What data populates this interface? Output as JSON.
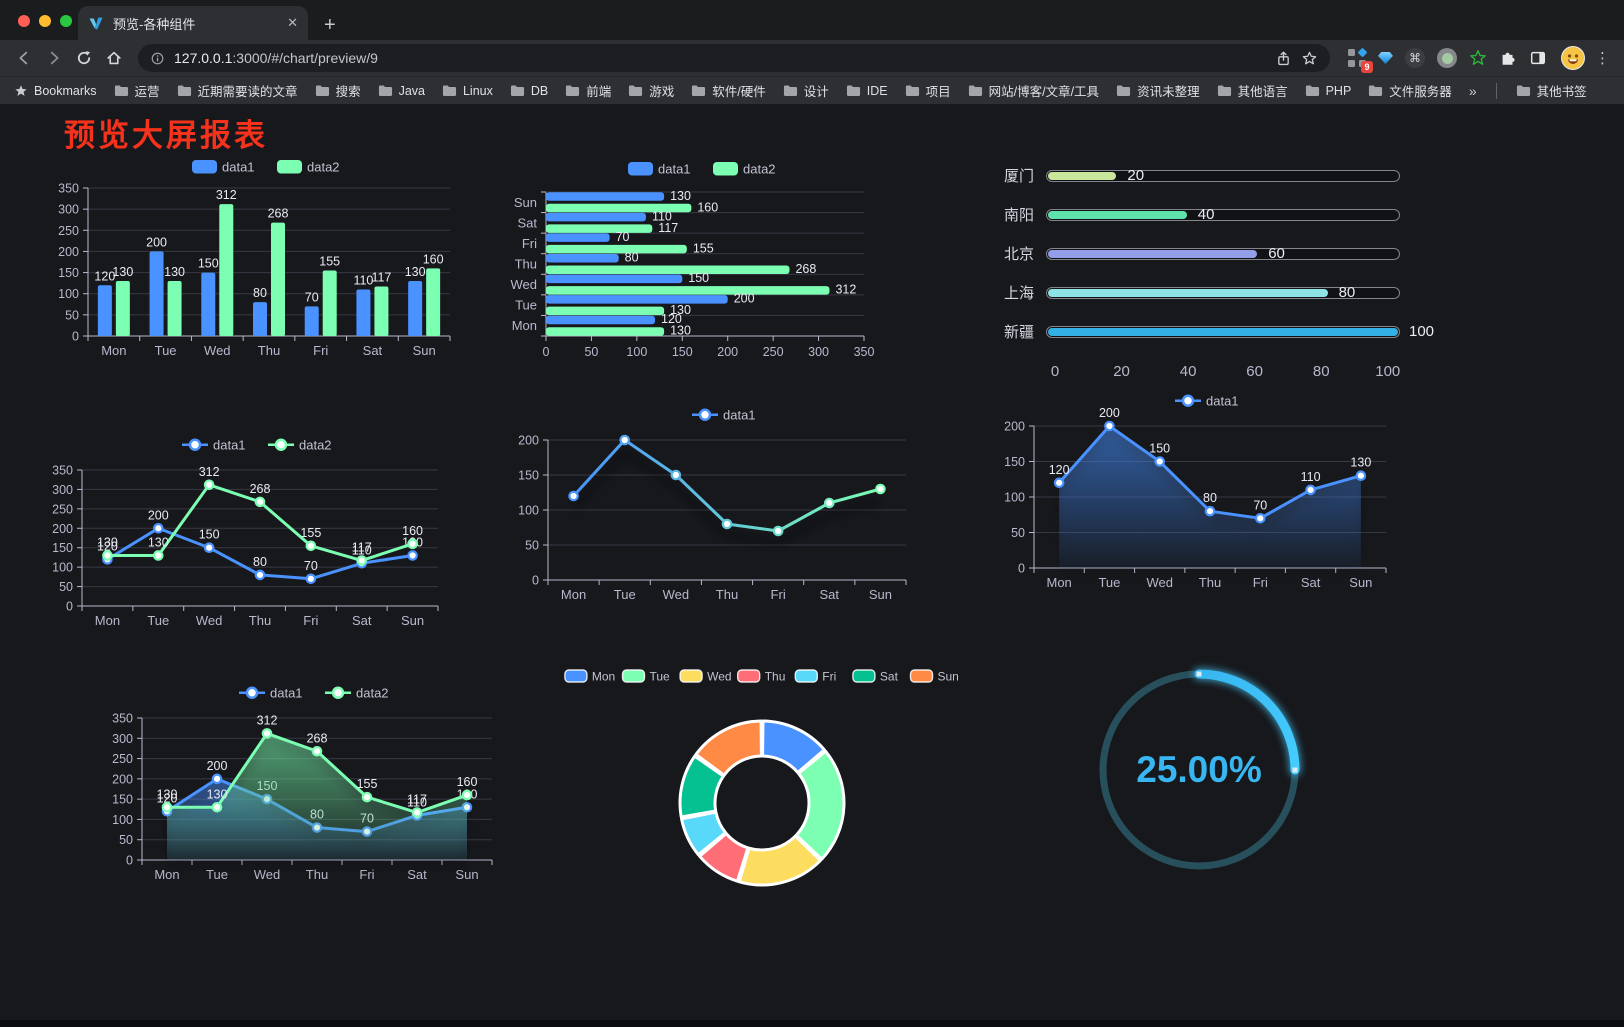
{
  "browser": {
    "tab": {
      "title": "预览-各种组件",
      "close": "✕",
      "new_tab": "+"
    },
    "url": {
      "host": "127.0.0.1",
      "rest": ":3000/#/chart/preview/9"
    },
    "extensions_badge": "9",
    "bookmarks_bar": {
      "bookmarks_label": "Bookmarks",
      "folders": [
        "运营",
        "近期需要读的文章",
        "搜索",
        "Java",
        "Linux",
        "DB",
        "前端",
        "游戏",
        "软件/硬件",
        "设计",
        "IDE",
        "项目",
        "网站/博客/文章/工具",
        "资讯未整理",
        "其他语言",
        "PHP",
        "文件服务器"
      ],
      "overflow": "»",
      "other_bookmarks": "其他书签"
    }
  },
  "page": {
    "title": "预览大屏报表"
  },
  "theme": {
    "axis_color": "#b9b8ce",
    "grid_color": "#393944",
    "value_label_color": "#eaeaf2",
    "legend_text_color": "#c3c2d2",
    "background": "#17181c",
    "series_blue": "#4992ff",
    "series_green": "#7cffb2"
  },
  "chart_data": [
    {
      "id": "bar-grouped",
      "type": "bar",
      "categories": [
        "Mon",
        "Tue",
        "Wed",
        "Thu",
        "Fri",
        "Sat",
        "Sun"
      ],
      "series": [
        {
          "name": "data1",
          "color": "#4992ff",
          "values": [
            120,
            200,
            150,
            80,
            70,
            110,
            130
          ]
        },
        {
          "name": "data2",
          "color": "#7cffb2",
          "values": [
            130,
            130,
            312,
            268,
            155,
            117,
            160
          ]
        }
      ],
      "ylim": [
        0,
        350
      ],
      "yticks": [
        0,
        50,
        100,
        150,
        200,
        250,
        300,
        350
      ],
      "legend_position": "top",
      "grid": true
    },
    {
      "id": "hbar-grouped",
      "type": "hbar",
      "categories": [
        "Mon",
        "Tue",
        "Wed",
        "Thu",
        "Fri",
        "Sat",
        "Sun"
      ],
      "series": [
        {
          "name": "data1",
          "color": "#4992ff",
          "values": [
            120,
            200,
            150,
            80,
            70,
            110,
            130
          ]
        },
        {
          "name": "data2",
          "color": "#7cffb2",
          "values": [
            130,
            130,
            312,
            268,
            155,
            117,
            160
          ]
        }
      ],
      "xlim": [
        0,
        350
      ],
      "xticks": [
        0,
        50,
        100,
        150,
        200,
        250,
        300,
        350
      ],
      "legend_position": "top",
      "grid": true
    },
    {
      "id": "progress-bars",
      "type": "progress",
      "max": 100,
      "items": [
        {
          "label": "厦门",
          "value": 20,
          "color": "#c9e79a"
        },
        {
          "label": "南阳",
          "value": 40,
          "color": "#5fe3ad"
        },
        {
          "label": "北京",
          "value": 60,
          "color": "#949ee8"
        },
        {
          "label": "上海",
          "value": 80,
          "color": "#8de3e6"
        },
        {
          "label": "新疆",
          "value": 100,
          "color": "#34b1e4"
        }
      ],
      "axis_ticks": [
        0,
        20,
        40,
        60,
        80,
        100
      ]
    },
    {
      "id": "line-basic",
      "type": "line",
      "categories": [
        "Mon",
        "Tue",
        "Wed",
        "Thu",
        "Fri",
        "Sat",
        "Sun"
      ],
      "series": [
        {
          "name": "data1",
          "color": "#4992ff",
          "values": [
            120,
            200,
            150,
            80,
            70,
            110,
            130
          ]
        },
        {
          "name": "data2",
          "color": "#7cffb2",
          "values": [
            130,
            130,
            312,
            268,
            155,
            117,
            160
          ]
        }
      ],
      "ylim": [
        0,
        350
      ],
      "yticks": [
        0,
        50,
        100,
        150,
        200,
        250,
        300,
        350
      ],
      "labels": true,
      "legend_position": "top"
    },
    {
      "id": "line-gradient",
      "type": "line",
      "categories": [
        "Mon",
        "Tue",
        "Wed",
        "Thu",
        "Fri",
        "Sat",
        "Sun"
      ],
      "series": [
        {
          "name": "data1",
          "color": "#4992ff",
          "color_end": "#7cffb2",
          "values": [
            120,
            200,
            150,
            80,
            70,
            110,
            130
          ]
        }
      ],
      "ylim": [
        0,
        200
      ],
      "yticks": [
        0,
        50,
        100,
        150,
        200
      ],
      "labels": false,
      "shadow": true,
      "legend_position": "top"
    },
    {
      "id": "line-area",
      "type": "line",
      "categories": [
        "Mon",
        "Tue",
        "Wed",
        "Thu",
        "Fri",
        "Sat",
        "Sun"
      ],
      "series": [
        {
          "name": "data1",
          "color": "#4992ff",
          "values": [
            120,
            200,
            150,
            80,
            70,
            110,
            130
          ],
          "area": true
        }
      ],
      "ylim": [
        0,
        200
      ],
      "yticks": [
        0,
        50,
        100,
        150,
        200
      ],
      "labels": true,
      "shadow": true,
      "legend_position": "top"
    },
    {
      "id": "line-area-double",
      "type": "line",
      "categories": [
        "Mon",
        "Tue",
        "Wed",
        "Thu",
        "Fri",
        "Sat",
        "Sun"
      ],
      "series": [
        {
          "name": "data1",
          "color": "#4992ff",
          "values": [
            120,
            200,
            150,
            80,
            70,
            110,
            130
          ],
          "area": true
        },
        {
          "name": "data2",
          "color": "#7cffb2",
          "values": [
            130,
            130,
            312,
            268,
            155,
            117,
            160
          ],
          "area": true
        }
      ],
      "ylim": [
        0,
        350
      ],
      "yticks": [
        0,
        50,
        100,
        150,
        200,
        250,
        300,
        350
      ],
      "labels": true,
      "shadow": true,
      "legend_position": "top"
    },
    {
      "id": "donut",
      "type": "donut",
      "items": [
        {
          "label": "Mon",
          "value": 120,
          "color": "#4992ff"
        },
        {
          "label": "Tue",
          "value": 200,
          "color": "#7cffb2"
        },
        {
          "label": "Wed",
          "value": 150,
          "color": "#fddd60"
        },
        {
          "label": "Thu",
          "value": 80,
          "color": "#ff6e76"
        },
        {
          "label": "Fri",
          "value": 70,
          "color": "#58d9f9"
        },
        {
          "label": "Sat",
          "value": 110,
          "color": "#05c091"
        },
        {
          "label": "Sun",
          "value": 130,
          "color": "#ff8a45"
        }
      ],
      "legend_position": "top",
      "border_color": "#ffffff"
    },
    {
      "id": "gauge",
      "type": "gauge",
      "value": 25,
      "display": "25.00%",
      "color": "#38b6f1",
      "color_bright": "#45cdff",
      "track_color": "#27505c"
    }
  ]
}
